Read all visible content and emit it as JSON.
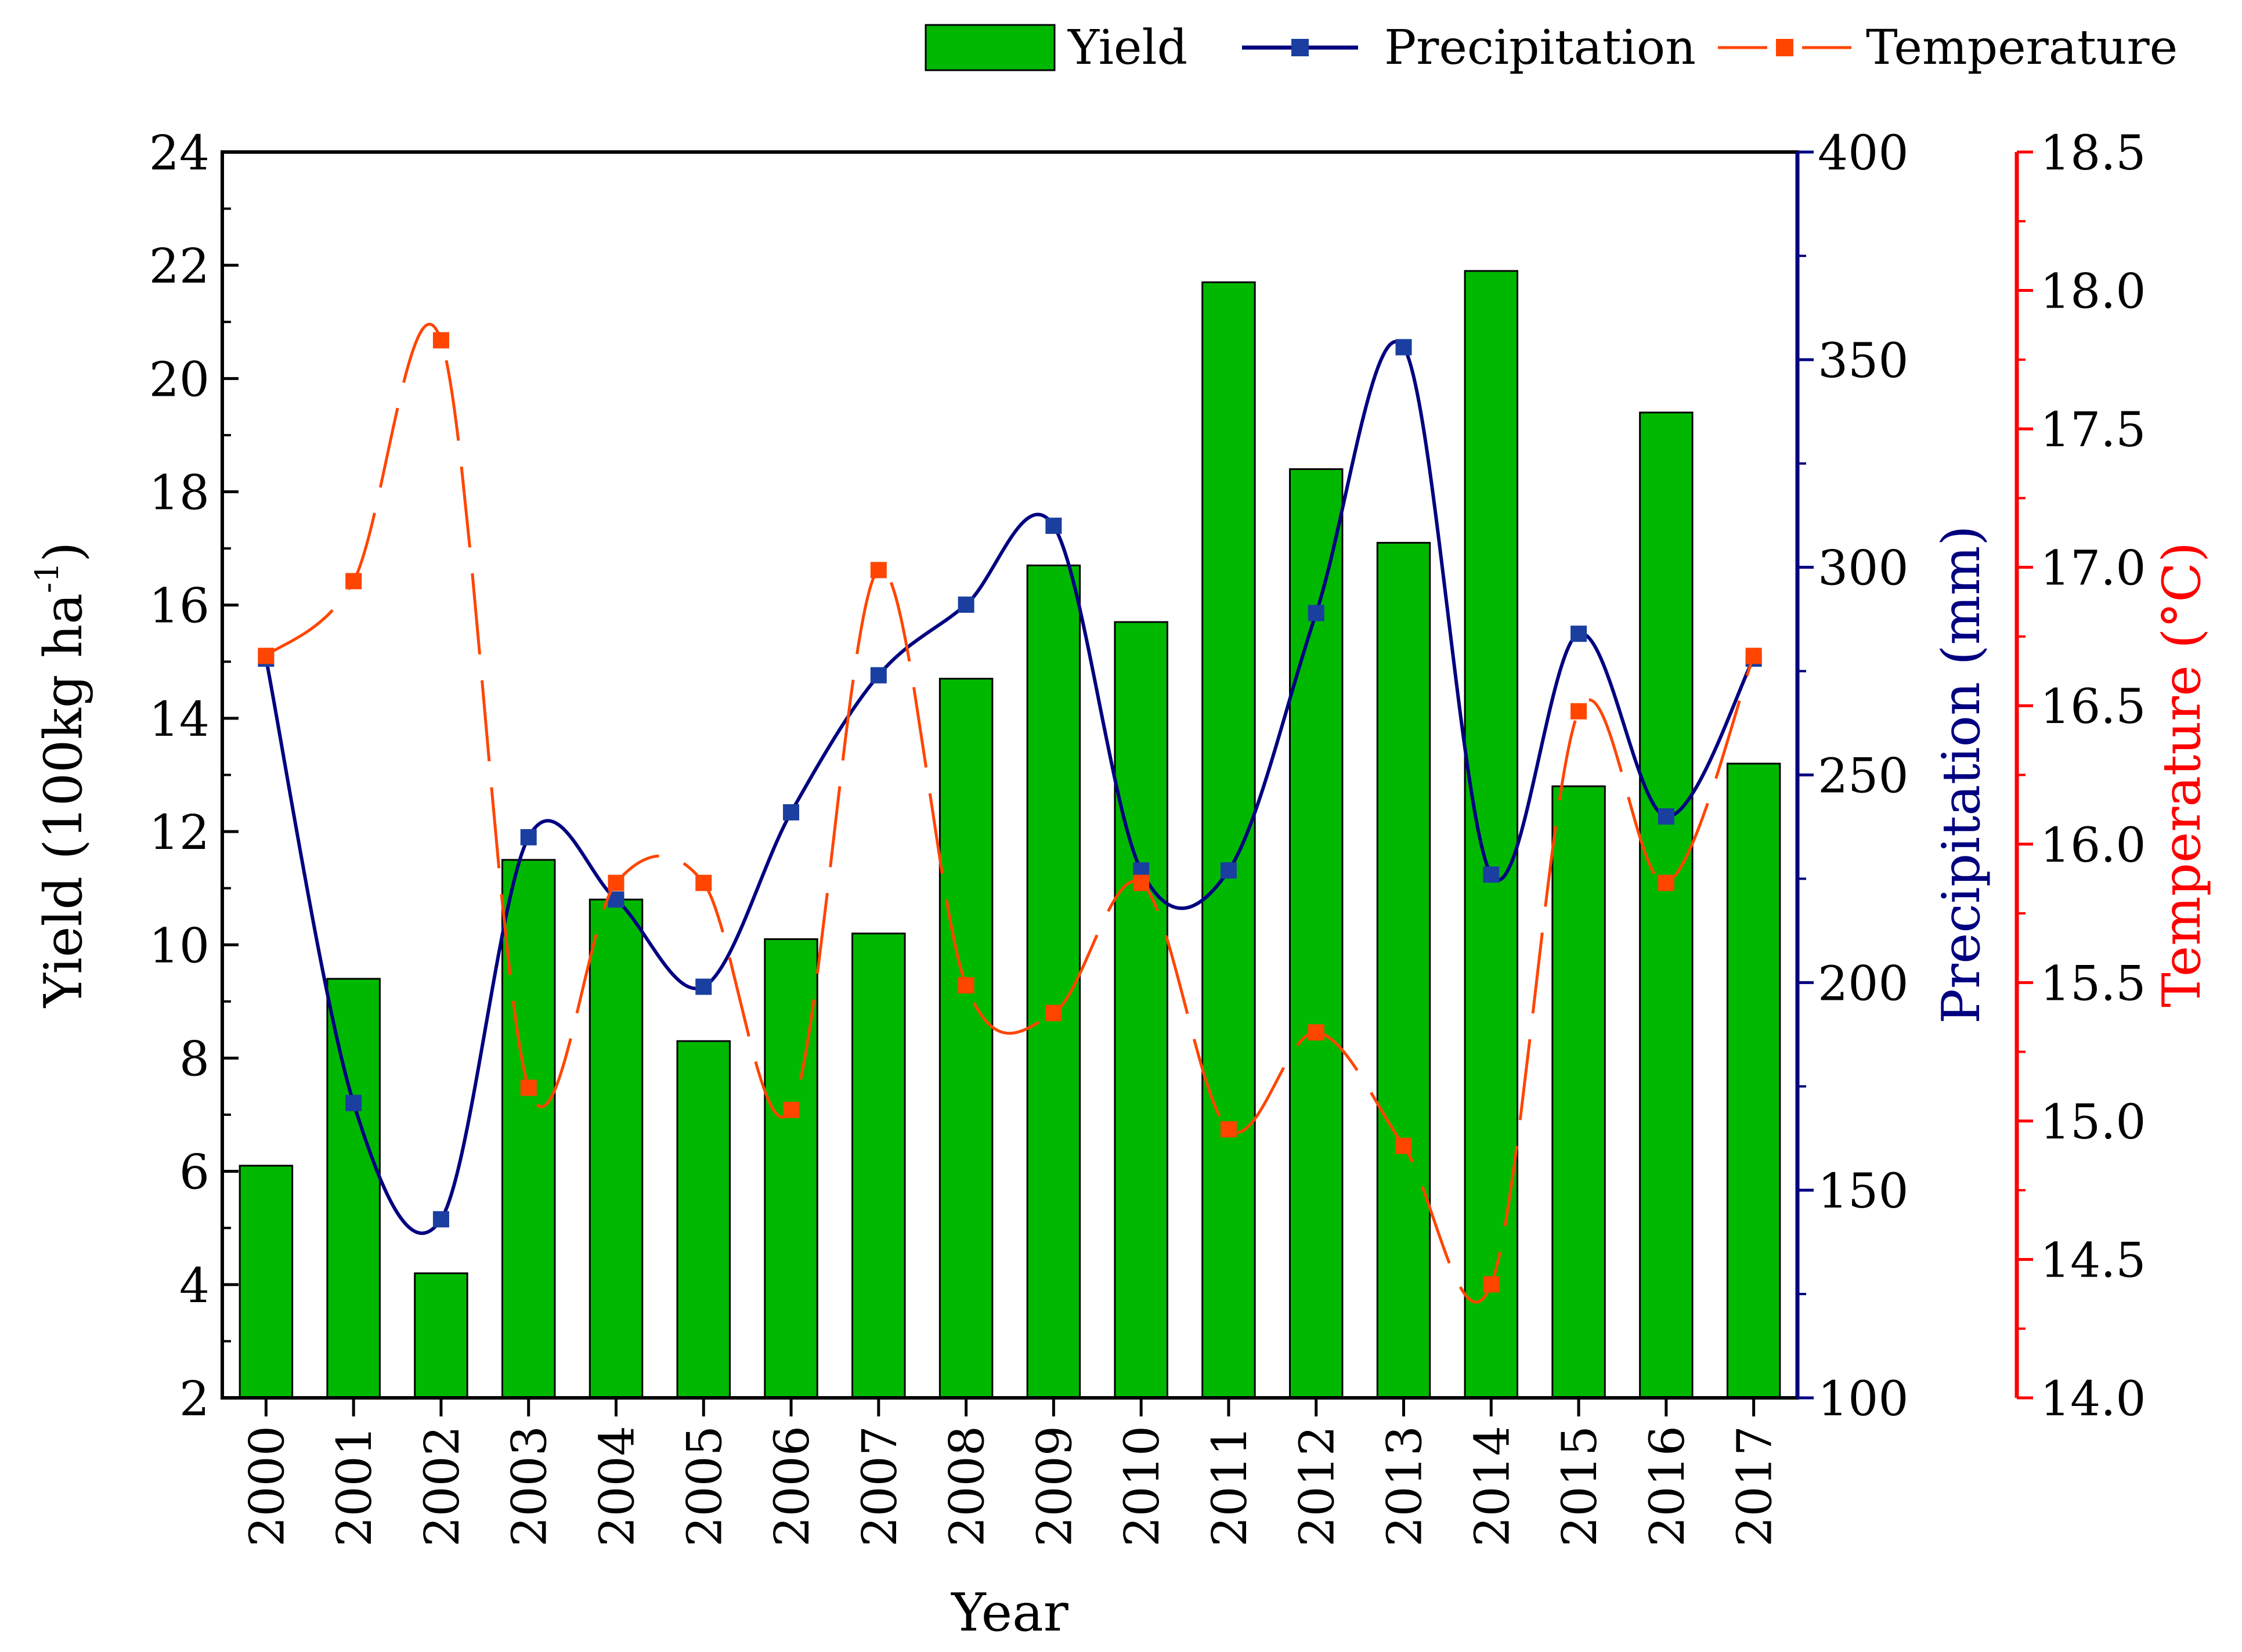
{
  "chart_data": {
    "type": "bar",
    "categories": [
      "2000",
      "2001",
      "2002",
      "2003",
      "2004",
      "2005",
      "2006",
      "2007",
      "2008",
      "2009",
      "2010",
      "2011",
      "2012",
      "2013",
      "2014",
      "2015",
      "2016",
      "2017"
    ],
    "xlabel": "Year",
    "series": [
      {
        "name": "Yield",
        "type": "bar",
        "axis": "left",
        "color": "#00B800",
        "values": [
          6.1,
          9.4,
          4.2,
          11.5,
          10.8,
          8.3,
          10.1,
          10.2,
          14.7,
          16.7,
          15.7,
          21.7,
          18.4,
          17.1,
          21.9,
          12.8,
          19.4,
          13.2
        ]
      },
      {
        "name": "Precipitation",
        "type": "line",
        "axis": "right1",
        "color": "#000080",
        "values": [
          278,
          171,
          143,
          235,
          220,
          199,
          241,
          274,
          291,
          310,
          227,
          227,
          289,
          353,
          226,
          284,
          240,
          278
        ]
      },
      {
        "name": "Temperature",
        "type": "line",
        "axis": "right2",
        "color": "#FF4500",
        "values": [
          16.68,
          16.95,
          17.82,
          15.12,
          15.86,
          15.86,
          15.04,
          16.99,
          15.49,
          15.39,
          15.86,
          14.97,
          15.32,
          14.91,
          14.41,
          16.48,
          15.86,
          16.68
        ]
      }
    ],
    "axes": {
      "left": {
        "label": "Yield (100kg ha",
        "label_sup": "-1",
        "label_close": ")",
        "min": 2,
        "max": 24,
        "ticks": [
          "2",
          "4",
          "6",
          "8",
          "10",
          "12",
          "14",
          "16",
          "18",
          "20",
          "22",
          "24"
        ]
      },
      "right1": {
        "label": "Precipitation (mm)",
        "min": 100,
        "max": 400,
        "ticks": [
          "100",
          "150",
          "200",
          "250",
          "300",
          "350",
          "400"
        ],
        "color": "#000080"
      },
      "right2": {
        "label": "Temperature (°C)",
        "min": 14.0,
        "max": 18.5,
        "ticks": [
          "14.0",
          "14.5",
          "15.0",
          "15.5",
          "16.0",
          "16.5",
          "17.0",
          "17.5",
          "18.0",
          "18.5"
        ],
        "color": "#FF0000"
      }
    },
    "legend": {
      "position": "top-right",
      "items": [
        "Yield",
        "Precipitation",
        "Temperature"
      ]
    }
  }
}
